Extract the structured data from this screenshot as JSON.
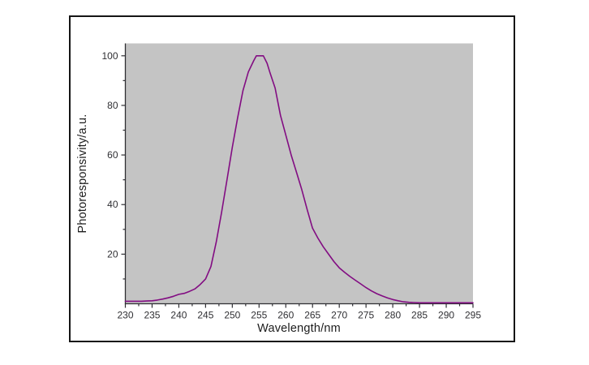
{
  "colors": {
    "page_bg": "#ffffff",
    "frame_border": "#151515",
    "plot_bg": "#c4c4c4",
    "axis": "#2f2f33",
    "tick_label": "#2f2f33",
    "curve": "#820c82",
    "title_text": "#1c1c1c"
  },
  "chart_data": {
    "type": "line",
    "title": "",
    "xlabel": "Wavelength/nm",
    "ylabel": "Photoresponsivity/a.u.",
    "xlim": [
      230,
      295
    ],
    "ylim": [
      0,
      105
    ],
    "x_major_ticks": [
      230,
      235,
      240,
      245,
      250,
      255,
      260,
      265,
      270,
      275,
      280,
      285,
      290,
      295
    ],
    "x_minor_step": 2.5,
    "y_major_ticks": [
      20,
      40,
      60,
      80,
      100
    ],
    "y_minor_step": 10,
    "grid": false,
    "legend": null,
    "ticks_direction": "out",
    "axes_shown": [
      "left",
      "bottom"
    ],
    "peak": {
      "x": 255,
      "y": 100
    },
    "series": [
      {
        "name": "photoresponsivity",
        "points": [
          [
            230,
            1.0
          ],
          [
            231,
            1.0
          ],
          [
            232,
            1.0
          ],
          [
            233,
            1.0
          ],
          [
            234,
            1.1
          ],
          [
            235,
            1.2
          ],
          [
            236,
            1.5
          ],
          [
            237,
            1.9
          ],
          [
            238,
            2.4
          ],
          [
            239,
            3.0
          ],
          [
            240,
            3.8
          ],
          [
            241,
            4.2
          ],
          [
            242,
            5.0
          ],
          [
            243,
            6.0
          ],
          [
            244,
            7.8
          ],
          [
            245,
            10.0
          ],
          [
            246,
            15.0
          ],
          [
            247,
            25.0
          ],
          [
            248,
            37.0
          ],
          [
            249,
            50.0
          ],
          [
            250,
            63.0
          ],
          [
            251,
            75.0
          ],
          [
            252,
            86.0
          ],
          [
            253,
            93.5
          ],
          [
            254,
            98.0
          ],
          [
            254.5,
            100.0
          ],
          [
            255.8,
            100.0
          ],
          [
            256.5,
            97.0
          ],
          [
            257,
            93.5
          ],
          [
            258,
            87.0
          ],
          [
            259,
            76.0
          ],
          [
            260,
            68.0
          ],
          [
            261,
            60.0
          ],
          [
            262,
            53.0
          ],
          [
            263,
            46.0
          ],
          [
            264,
            38.0
          ],
          [
            265,
            30.5
          ],
          [
            266,
            26.5
          ],
          [
            267,
            23.0
          ],
          [
            268,
            20.0
          ],
          [
            269,
            17.0
          ],
          [
            270,
            14.5
          ],
          [
            271,
            12.7
          ],
          [
            272,
            11.0
          ],
          [
            273,
            9.5
          ],
          [
            274,
            8.0
          ],
          [
            275,
            6.5
          ],
          [
            276,
            5.2
          ],
          [
            277,
            4.1
          ],
          [
            278,
            3.2
          ],
          [
            279,
            2.4
          ],
          [
            280,
            1.7
          ],
          [
            281,
            1.2
          ],
          [
            282,
            0.8
          ],
          [
            283,
            0.6
          ],
          [
            284,
            0.5
          ],
          [
            285,
            0.4
          ],
          [
            287,
            0.4
          ],
          [
            289,
            0.4
          ],
          [
            291,
            0.4
          ],
          [
            293,
            0.4
          ],
          [
            295,
            0.4
          ]
        ]
      }
    ]
  }
}
